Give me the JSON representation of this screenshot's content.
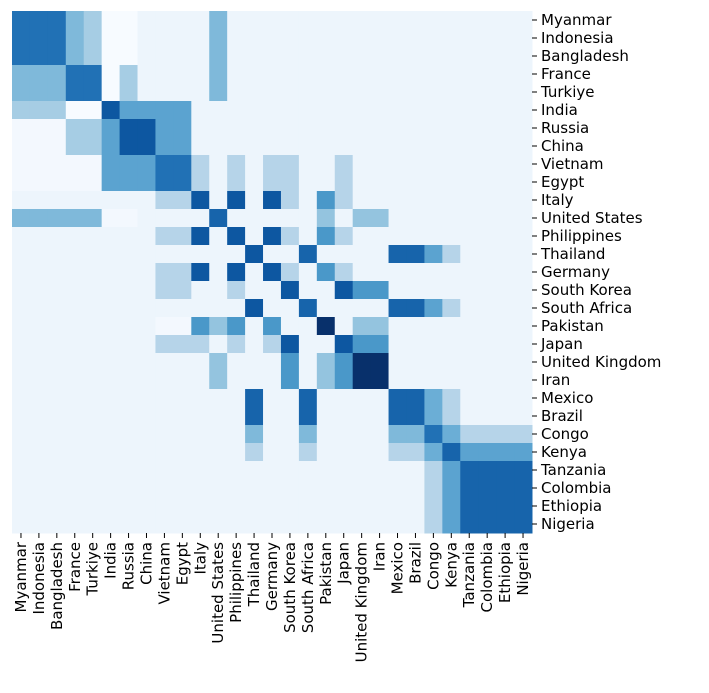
{
  "chart_data": {
    "type": "heatmap",
    "categories": [
      "Myanmar",
      "Indonesia",
      "Bangladesh",
      "France",
      "Turkiye",
      "India",
      "Russia",
      "China",
      "Vietnam",
      "Egypt",
      "Italy",
      "United States",
      "Philippines",
      "Thailand",
      "Germany",
      "South Korea",
      "South Africa",
      "Pakistan",
      "Japan",
      "United Kingdom",
      "Iran",
      "Mexico",
      "Brazil",
      "Congo",
      "Kenya",
      "Tanzania",
      "Colombia",
      "Ethiopia",
      "Nigeria"
    ],
    "colormap": [
      "#f7fbff",
      "#deebf7",
      "#c6dbef",
      "#9ecae1",
      "#6baed6",
      "#4292c6",
      "#2171b5",
      "#08519c",
      "#08306b"
    ],
    "values": [
      [
        0.75,
        0.75,
        0.75,
        0.45,
        0.35,
        0,
        0,
        0.05,
        0.05,
        0.05,
        0.05,
        0.45,
        0.05,
        0.05,
        0.05,
        0.05,
        0.05,
        0.05,
        0.05,
        0.05,
        0.05,
        0.05,
        0.05,
        0.05,
        0.05,
        0.05,
        0.05,
        0.05,
        0.05
      ],
      [
        0.75,
        0.75,
        0.75,
        0.45,
        0.35,
        0,
        0,
        0.05,
        0.05,
        0.05,
        0.05,
        0.45,
        0.05,
        0.05,
        0.05,
        0.05,
        0.05,
        0.05,
        0.05,
        0.05,
        0.05,
        0.05,
        0.05,
        0.05,
        0.05,
        0.05,
        0.05,
        0.05,
        0.05
      ],
      [
        0.75,
        0.75,
        0.75,
        0.45,
        0.35,
        0,
        0,
        0.05,
        0.05,
        0.05,
        0.05,
        0.45,
        0.05,
        0.05,
        0.05,
        0.05,
        0.05,
        0.05,
        0.05,
        0.05,
        0.05,
        0.05,
        0.05,
        0.05,
        0.05,
        0.05,
        0.05,
        0.05,
        0.05
      ],
      [
        0.45,
        0.45,
        0.45,
        0.75,
        0.75,
        0,
        0.35,
        0.05,
        0.05,
        0.05,
        0.05,
        0.45,
        0.05,
        0.05,
        0.05,
        0.05,
        0.05,
        0.05,
        0.05,
        0.05,
        0.05,
        0.05,
        0.05,
        0.05,
        0.05,
        0.05,
        0.05,
        0.05,
        0.05
      ],
      [
        0.45,
        0.45,
        0.45,
        0.75,
        0.75,
        0,
        0.35,
        0.05,
        0.05,
        0.05,
        0.05,
        0.45,
        0.05,
        0.05,
        0.05,
        0.05,
        0.05,
        0.05,
        0.05,
        0.05,
        0.05,
        0.05,
        0.05,
        0.05,
        0.05,
        0.05,
        0.05,
        0.05,
        0.05
      ],
      [
        0.35,
        0.35,
        0.35,
        0,
        0,
        0.85,
        0.55,
        0.55,
        0.55,
        0.55,
        0.05,
        0.05,
        0.05,
        0.05,
        0.05,
        0.05,
        0.05,
        0.05,
        0.05,
        0.05,
        0.05,
        0.05,
        0.05,
        0.05,
        0.05,
        0.05,
        0.05,
        0.05,
        0.05
      ],
      [
        0.02,
        0.02,
        0.02,
        0.35,
        0.35,
        0.55,
        0.85,
        0.85,
        0.55,
        0.55,
        0.05,
        0.05,
        0.05,
        0.05,
        0.05,
        0.05,
        0.05,
        0.05,
        0.05,
        0.05,
        0.05,
        0.05,
        0.05,
        0.05,
        0.05,
        0.05,
        0.05,
        0.05,
        0.05
      ],
      [
        0.02,
        0.02,
        0.02,
        0.35,
        0.35,
        0.55,
        0.85,
        0.85,
        0.55,
        0.55,
        0.05,
        0.05,
        0.05,
        0.05,
        0.05,
        0.05,
        0.05,
        0.05,
        0.05,
        0.05,
        0.05,
        0.05,
        0.05,
        0.05,
        0.05,
        0.05,
        0.05,
        0.05,
        0.05
      ],
      [
        0.02,
        0.02,
        0.02,
        0.02,
        0.02,
        0.55,
        0.55,
        0.55,
        0.75,
        0.75,
        0.3,
        0.05,
        0.3,
        0.05,
        0.3,
        0.3,
        0.05,
        0.05,
        0.3,
        0.05,
        0.05,
        0.05,
        0.05,
        0.05,
        0.05,
        0.05,
        0.05,
        0.05,
        0.05
      ],
      [
        0.02,
        0.02,
        0.02,
        0.02,
        0.02,
        0.55,
        0.55,
        0.55,
        0.75,
        0.75,
        0.3,
        0.05,
        0.3,
        0.05,
        0.3,
        0.3,
        0.05,
        0.05,
        0.3,
        0.05,
        0.05,
        0.05,
        0.05,
        0.05,
        0.05,
        0.05,
        0.05,
        0.05,
        0.05
      ],
      [
        0.05,
        0.05,
        0.05,
        0.05,
        0.05,
        0.05,
        0.05,
        0.05,
        0.3,
        0.3,
        0.85,
        0.05,
        0.85,
        0.05,
        0.85,
        0.3,
        0.05,
        0.6,
        0.3,
        0.05,
        0.05,
        0.05,
        0.05,
        0.05,
        0.05,
        0.05,
        0.05,
        0.05,
        0.05
      ],
      [
        0.45,
        0.45,
        0.45,
        0.45,
        0.45,
        0.02,
        0.02,
        0.05,
        0.05,
        0.05,
        0.05,
        0.8,
        0.05,
        0.05,
        0.05,
        0.05,
        0.05,
        0.4,
        0.05,
        0.4,
        0.4,
        0.05,
        0.05,
        0.05,
        0.05,
        0.05,
        0.05,
        0.05,
        0.05
      ],
      [
        0.05,
        0.05,
        0.05,
        0.05,
        0.05,
        0.05,
        0.05,
        0.05,
        0.3,
        0.3,
        0.85,
        0.05,
        0.85,
        0.05,
        0.85,
        0.3,
        0.05,
        0.6,
        0.3,
        0.05,
        0.05,
        0.05,
        0.05,
        0.05,
        0.05,
        0.05,
        0.05,
        0.05,
        0.05
      ],
      [
        0.05,
        0.05,
        0.05,
        0.05,
        0.05,
        0.05,
        0.05,
        0.05,
        0.05,
        0.05,
        0.05,
        0.05,
        0.05,
        0.85,
        0.05,
        0.05,
        0.8,
        0.05,
        0.05,
        0.05,
        0.05,
        0.8,
        0.8,
        0.55,
        0.3,
        0.05,
        0.05,
        0.05,
        0.05
      ],
      [
        0.05,
        0.05,
        0.05,
        0.05,
        0.05,
        0.05,
        0.05,
        0.05,
        0.3,
        0.3,
        0.85,
        0.05,
        0.85,
        0.05,
        0.85,
        0.3,
        0.05,
        0.6,
        0.3,
        0.05,
        0.05,
        0.05,
        0.05,
        0.05,
        0.05,
        0.05,
        0.05,
        0.05,
        0.05
      ],
      [
        0.05,
        0.05,
        0.05,
        0.05,
        0.05,
        0.05,
        0.05,
        0.05,
        0.3,
        0.3,
        0.05,
        0.05,
        0.3,
        0.05,
        0.05,
        0.85,
        0.05,
        0.05,
        0.85,
        0.6,
        0.6,
        0.05,
        0.05,
        0.05,
        0.05,
        0.05,
        0.05,
        0.05,
        0.05
      ],
      [
        0.05,
        0.05,
        0.05,
        0.05,
        0.05,
        0.05,
        0.05,
        0.05,
        0.05,
        0.05,
        0.05,
        0.05,
        0.05,
        0.85,
        0.05,
        0.05,
        0.8,
        0.05,
        0.05,
        0.05,
        0.05,
        0.8,
        0.8,
        0.55,
        0.3,
        0.05,
        0.05,
        0.05,
        0.05
      ],
      [
        0.05,
        0.05,
        0.05,
        0.05,
        0.05,
        0.05,
        0.05,
        0.05,
        0.02,
        0.02,
        0.6,
        0.4,
        0.6,
        0.05,
        0.6,
        0.05,
        0.05,
        1,
        0.05,
        0.4,
        0.4,
        0.05,
        0.05,
        0.05,
        0.05,
        0.05,
        0.05,
        0.05,
        0.05
      ],
      [
        0.05,
        0.05,
        0.05,
        0.05,
        0.05,
        0.05,
        0.05,
        0.05,
        0.3,
        0.3,
        0.3,
        0.05,
        0.3,
        0.05,
        0.3,
        0.85,
        0.05,
        0.05,
        0.85,
        0.6,
        0.6,
        0.05,
        0.05,
        0.05,
        0.05,
        0.05,
        0.05,
        0.05,
        0.05
      ],
      [
        0.05,
        0.05,
        0.05,
        0.05,
        0.05,
        0.05,
        0.05,
        0.05,
        0.05,
        0.05,
        0.05,
        0.4,
        0.05,
        0.05,
        0.05,
        0.6,
        0.05,
        0.4,
        0.6,
        1,
        1,
        0.05,
        0.05,
        0.05,
        0.05,
        0.05,
        0.05,
        0.05,
        0.05
      ],
      [
        0.05,
        0.05,
        0.05,
        0.05,
        0.05,
        0.05,
        0.05,
        0.05,
        0.05,
        0.05,
        0.05,
        0.4,
        0.05,
        0.05,
        0.05,
        0.6,
        0.05,
        0.4,
        0.6,
        1,
        1,
        0.05,
        0.05,
        0.05,
        0.05,
        0.05,
        0.05,
        0.05,
        0.05
      ],
      [
        0.05,
        0.05,
        0.05,
        0.05,
        0.05,
        0.05,
        0.05,
        0.05,
        0.05,
        0.05,
        0.05,
        0.05,
        0.05,
        0.8,
        0.05,
        0.05,
        0.8,
        0.05,
        0.05,
        0.05,
        0.05,
        0.8,
        0.8,
        0.5,
        0.3,
        0.05,
        0.05,
        0.05,
        0.05
      ],
      [
        0.05,
        0.05,
        0.05,
        0.05,
        0.05,
        0.05,
        0.05,
        0.05,
        0.05,
        0.05,
        0.05,
        0.05,
        0.05,
        0.8,
        0.05,
        0.05,
        0.8,
        0.05,
        0.05,
        0.05,
        0.05,
        0.8,
        0.8,
        0.5,
        0.3,
        0.05,
        0.05,
        0.05,
        0.05
      ],
      [
        0.05,
        0.05,
        0.05,
        0.05,
        0.05,
        0.05,
        0.05,
        0.05,
        0.05,
        0.05,
        0.05,
        0.05,
        0.05,
        0.45,
        0.05,
        0.05,
        0.45,
        0.05,
        0.05,
        0.05,
        0.05,
        0.45,
        0.45,
        0.75,
        0.5,
        0.3,
        0.3,
        0.3,
        0.3
      ],
      [
        0.05,
        0.05,
        0.05,
        0.05,
        0.05,
        0.05,
        0.05,
        0.05,
        0.05,
        0.05,
        0.05,
        0.05,
        0.05,
        0.3,
        0.05,
        0.05,
        0.3,
        0.05,
        0.05,
        0.05,
        0.05,
        0.3,
        0.3,
        0.5,
        0.8,
        0.55,
        0.55,
        0.55,
        0.55
      ],
      [
        0.05,
        0.05,
        0.05,
        0.05,
        0.05,
        0.05,
        0.05,
        0.05,
        0.05,
        0.05,
        0.05,
        0.05,
        0.05,
        0.05,
        0.05,
        0.05,
        0.05,
        0.05,
        0.05,
        0.05,
        0.05,
        0.05,
        0.05,
        0.3,
        0.55,
        0.8,
        0.8,
        0.8,
        0.8
      ],
      [
        0.05,
        0.05,
        0.05,
        0.05,
        0.05,
        0.05,
        0.05,
        0.05,
        0.05,
        0.05,
        0.05,
        0.05,
        0.05,
        0.05,
        0.05,
        0.05,
        0.05,
        0.05,
        0.05,
        0.05,
        0.05,
        0.05,
        0.05,
        0.3,
        0.55,
        0.8,
        0.8,
        0.8,
        0.8
      ],
      [
        0.05,
        0.05,
        0.05,
        0.05,
        0.05,
        0.05,
        0.05,
        0.05,
        0.05,
        0.05,
        0.05,
        0.05,
        0.05,
        0.05,
        0.05,
        0.05,
        0.05,
        0.05,
        0.05,
        0.05,
        0.05,
        0.05,
        0.05,
        0.3,
        0.55,
        0.8,
        0.8,
        0.8,
        0.8
      ],
      [
        0.05,
        0.05,
        0.05,
        0.05,
        0.05,
        0.05,
        0.05,
        0.05,
        0.05,
        0.05,
        0.05,
        0.05,
        0.05,
        0.05,
        0.05,
        0.05,
        0.05,
        0.05,
        0.05,
        0.05,
        0.05,
        0.05,
        0.05,
        0.3,
        0.55,
        0.8,
        0.8,
        0.8,
        0.8
      ]
    ]
  }
}
